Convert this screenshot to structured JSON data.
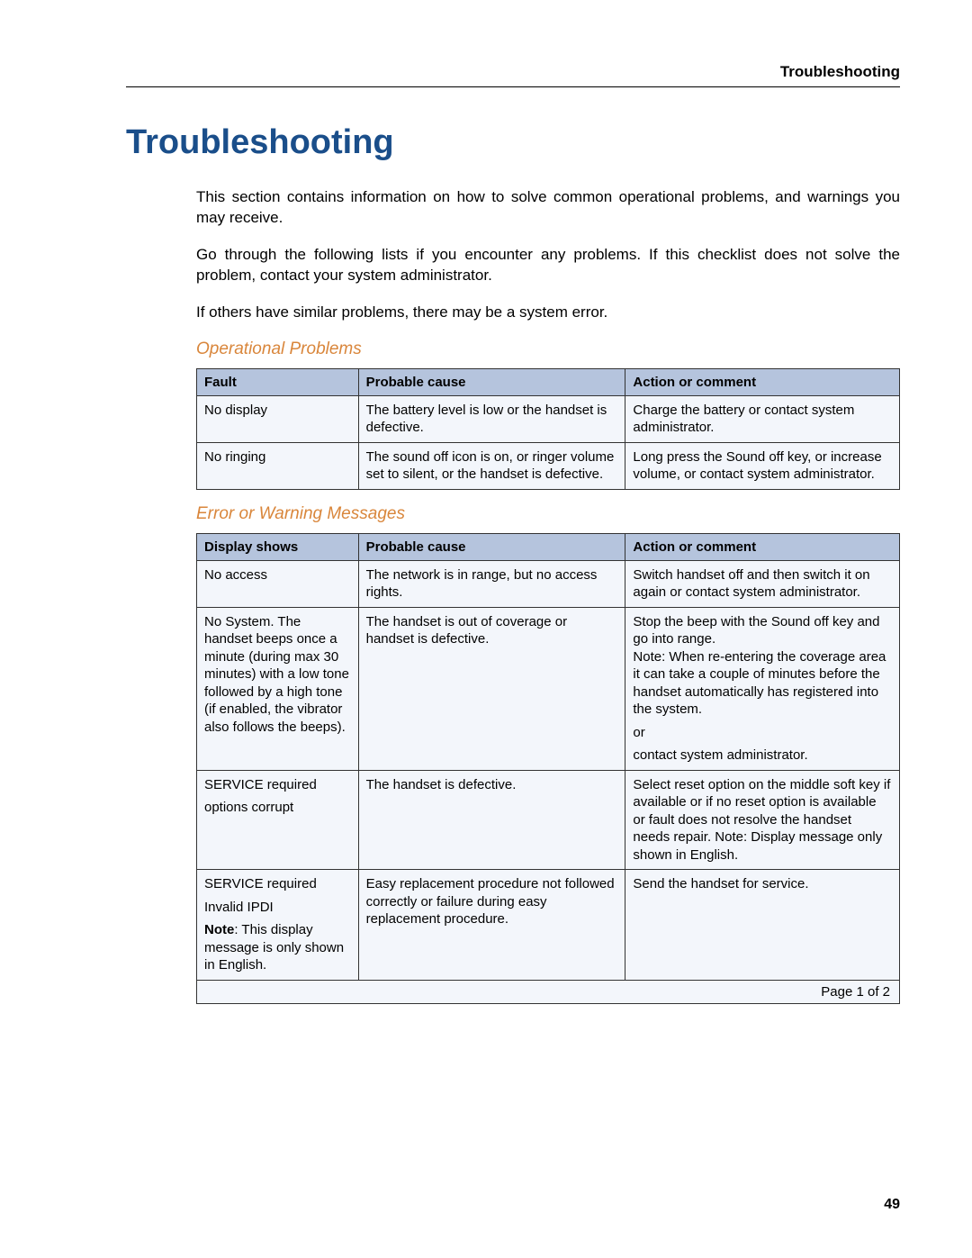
{
  "header": {
    "running": "Troubleshooting"
  },
  "title": "Troubleshooting",
  "intro": {
    "p1": "This section contains information on how to solve common operational problems, and warnings you may receive.",
    "p2": "Go through the following lists if you encounter any problems. If this checklist does not solve the problem, contact your system administrator.",
    "p3": "If others have similar problems, there may be a system error."
  },
  "section1": {
    "heading": "Operational Problems",
    "columns": [
      "Fault",
      "Probable cause",
      "Action or comment"
    ],
    "rows": [
      {
        "c1": "No display",
        "c2": "The battery level is low or the handset is defective.",
        "c3": "Charge the battery or contact system administrator."
      },
      {
        "c1": "No ringing",
        "c2": "The sound off icon is on, or ringer volume set to silent, or the handset is defective.",
        "c3": "Long press the Sound off key, or increase volume, or contact system administrator."
      }
    ]
  },
  "section2": {
    "heading": "Error or Warning Messages",
    "columns": [
      "Display shows",
      "Probable cause",
      "Action or comment"
    ],
    "rows": [
      {
        "c1": "No access",
        "c2": "The network is in range, but no access rights.",
        "c3": "Switch handset off and then switch it on again or contact system administrator."
      },
      {
        "c1": "No System. The handset beeps once a minute (during max 30 minutes) with a low tone followed by a high tone (if enabled, the vibrator also follows the beeps).",
        "c2": "The handset is out of coverage or handset is defective.",
        "c3_p1": "Stop the beep with the Sound off key and go into range.\nNote: When re-entering the coverage area it can take a couple of minutes before the handset automatically has registered into the system.",
        "c3_p2": "or",
        "c3_p3": "contact system administrator."
      },
      {
        "c1_p1": "SERVICE required",
        "c1_p2": "options corrupt",
        "c2": "The handset is defective.",
        "c3": "Select reset option on the middle soft key if available or if no reset option is available or fault does not resolve the handset needs repair. Note: Display message only shown in English."
      },
      {
        "c1_p1": "SERVICE required",
        "c1_p2": "Invalid IPDI",
        "c1_note_label": "Note",
        "c1_note_rest": ": This display message is only shown in English.",
        "c2": "Easy replacement procedure not followed correctly or failure during easy replacement procedure.",
        "c3": "Send the handset for service."
      }
    ],
    "footer": "Page 1 of 2"
  },
  "pageNumber": "49",
  "style": {
    "title_color": "#1a4e8a",
    "subheading_color": "#d9863b",
    "th_bg": "#b5c4dd",
    "td_bg": "#f3f6fb",
    "border_color": "#333333",
    "body_font_size": 17,
    "table_font_size": 15,
    "title_font_size": 38,
    "col_widths_pct": [
      23,
      38,
      39
    ]
  }
}
